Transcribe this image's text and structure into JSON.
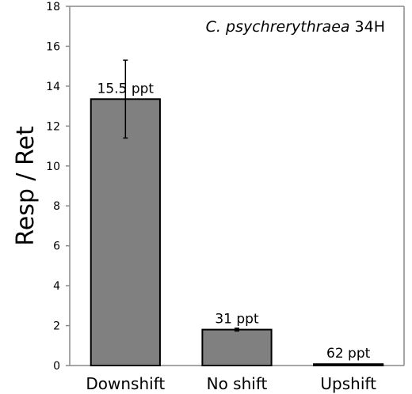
{
  "chart_data": {
    "type": "bar",
    "title_italic": "C. psychrerythraea",
    "title_rest": "34H",
    "xlabel": "",
    "ylabel": "Resp / Ret",
    "ylim": [
      0,
      18
    ],
    "yticks": [
      0,
      2,
      4,
      6,
      8,
      10,
      12,
      14,
      16,
      18
    ],
    "grid": false,
    "categories": [
      "Downshift",
      "No shift",
      "Upshift"
    ],
    "values": [
      13.35,
      1.8,
      0.07
    ],
    "errors": [
      1.95,
      0.07,
      0
    ],
    "data_labels": [
      "15.5 ppt",
      "31 ppt",
      "62 ppt"
    ],
    "bar_color": "#808080"
  }
}
